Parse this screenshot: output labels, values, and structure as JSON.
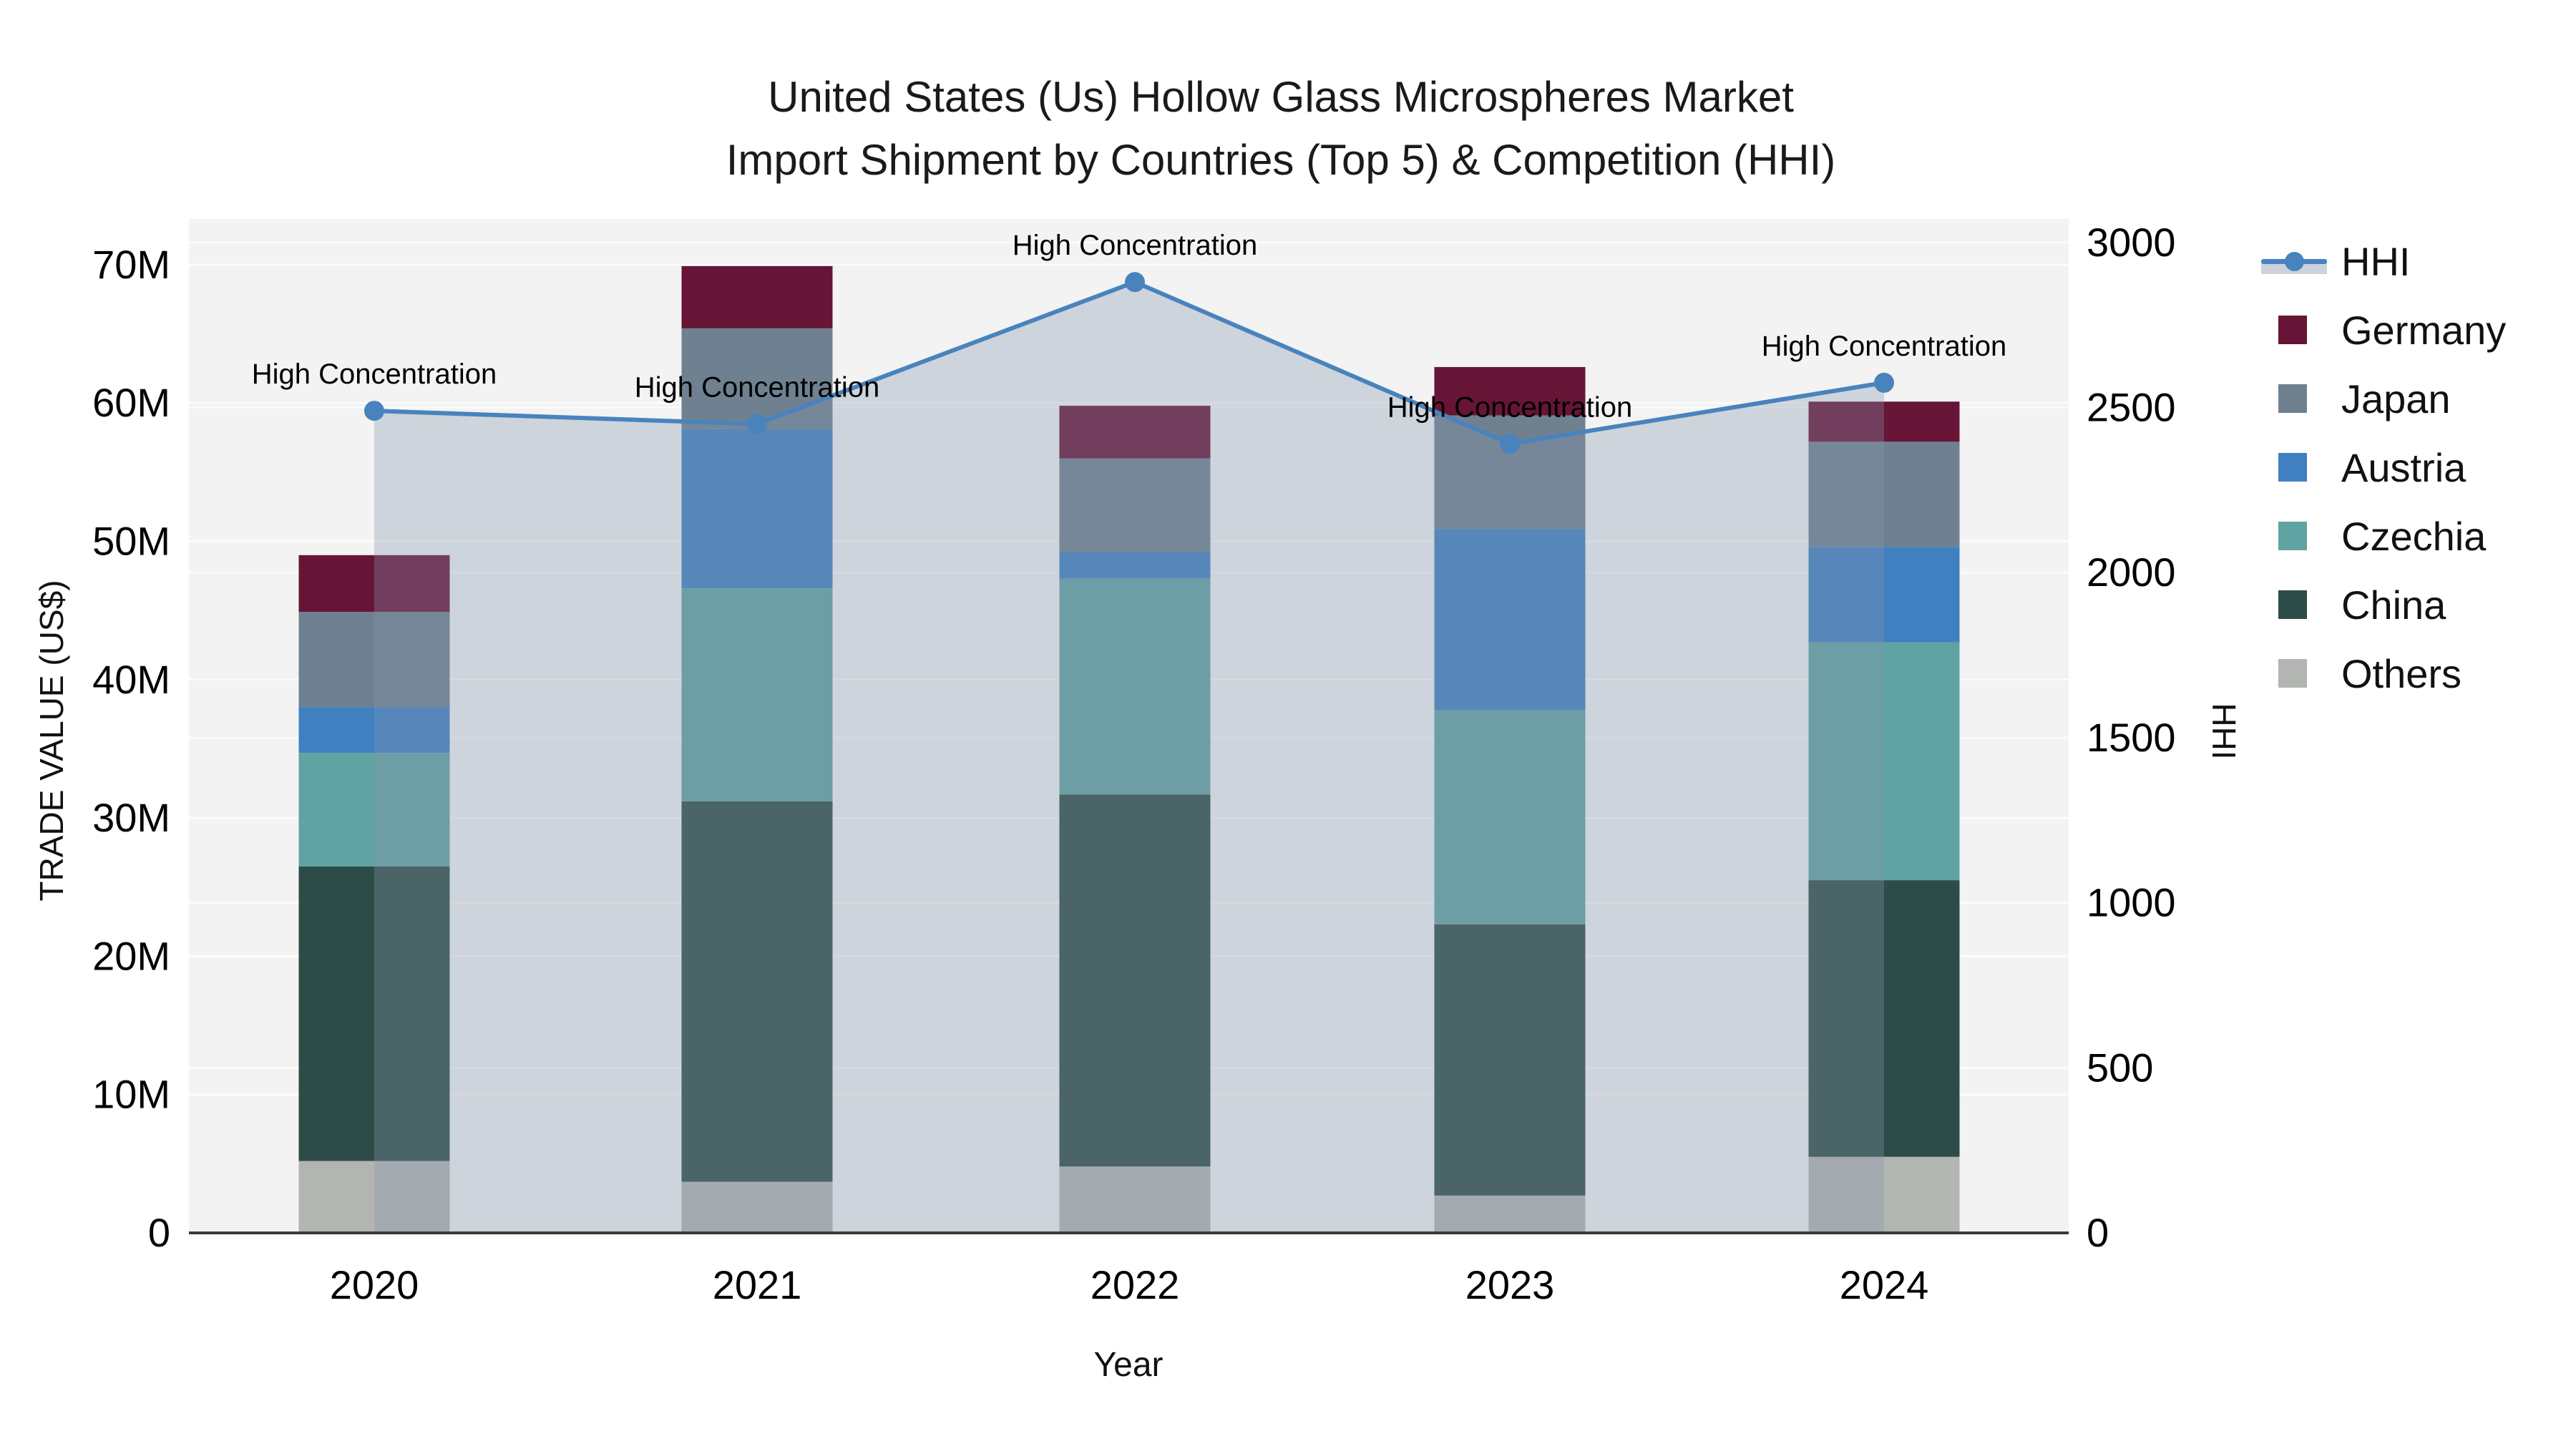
{
  "title": {
    "line1": "United States (Us) Hollow Glass Microspheres Market",
    "line2": "Import Shipment by Countries (Top 5) & Competition (HHI)"
  },
  "axes": {
    "left_title": "TRADE VALUE (US$)",
    "right_title": "HHI",
    "x_title": "Year",
    "left_ticks": [
      {
        "label": "0",
        "value": 0
      },
      {
        "label": "10M",
        "value": 10
      },
      {
        "label": "20M",
        "value": 20
      },
      {
        "label": "30M",
        "value": 30
      },
      {
        "label": "40M",
        "value": 40
      },
      {
        "label": "50M",
        "value": 50
      },
      {
        "label": "60M",
        "value": 60
      },
      {
        "label": "70M",
        "value": 70
      }
    ],
    "right_ticks": [
      {
        "label": "0",
        "value": 0
      },
      {
        "label": "500",
        "value": 500
      },
      {
        "label": "1000",
        "value": 1000
      },
      {
        "label": "1500",
        "value": 1500
      },
      {
        "label": "2000",
        "value": 2000
      },
      {
        "label": "2500",
        "value": 2500
      },
      {
        "label": "3000",
        "value": 3000
      }
    ]
  },
  "chart_data": {
    "type": "combo-stacked-bar-with-line-area",
    "categories": [
      "2020",
      "2021",
      "2022",
      "2023",
      "2024"
    ],
    "unit_left": "M US$",
    "unit_right": "HHI index",
    "ylim_left": [
      0,
      73.3
    ],
    "ylim_right": [
      0,
      3071
    ],
    "grid": "on",
    "legend_position": "right-top-outside",
    "series": [
      {
        "name": "Others",
        "color": "#b2b5b2",
        "values": [
          5.2,
          3.7,
          4.8,
          2.7,
          5.5
        ]
      },
      {
        "name": "China",
        "color": "#2e4c47",
        "values": [
          21.3,
          27.5,
          26.9,
          19.6,
          20.0
        ]
      },
      {
        "name": "Czechia",
        "color": "#61a3a2",
        "values": [
          8.2,
          15.4,
          15.6,
          15.5,
          17.2
        ]
      },
      {
        "name": "Austria",
        "color": "#4180c0",
        "values": [
          3.3,
          11.5,
          1.9,
          13.1,
          6.9
        ]
      },
      {
        "name": "Japan",
        "color": "#6f8191",
        "values": [
          6.9,
          7.3,
          6.8,
          8.2,
          7.6
        ]
      },
      {
        "name": "Germany",
        "color": "#671536",
        "values": [
          4.1,
          4.5,
          3.8,
          3.5,
          2.9
        ]
      }
    ],
    "bar_totals": [
      49.0,
      69.9,
      59.8,
      62.6,
      60.1
    ],
    "line": {
      "name": "HHI",
      "color": "#4983bd",
      "fill": "rgba(134,150,172,0.33)",
      "values": [
        2490,
        2450,
        2880,
        2390,
        2575
      ]
    },
    "annotations": [
      {
        "year": "2020",
        "text": "High Concentration"
      },
      {
        "year": "2021",
        "text": "High Concentration"
      },
      {
        "year": "2022",
        "text": "High Concentration"
      },
      {
        "year": "2023",
        "text": "High Concentration"
      },
      {
        "year": "2024",
        "text": "High Concentration"
      }
    ]
  },
  "legend": {
    "items": [
      {
        "label": "HHI",
        "type": "line",
        "color": "#4983bd"
      },
      {
        "label": "Germany",
        "type": "square",
        "color": "#671536"
      },
      {
        "label": "Japan",
        "type": "square",
        "color": "#6f8191"
      },
      {
        "label": "Austria",
        "type": "square",
        "color": "#4180c0"
      },
      {
        "label": "Czechia",
        "type": "square",
        "color": "#61a3a2"
      },
      {
        "label": "China",
        "type": "square",
        "color": "#2e4c47"
      },
      {
        "label": "Others",
        "type": "square",
        "color": "#b2b5b2"
      }
    ]
  },
  "colors": {
    "plot_background": "#f2f3f2",
    "page_background": "#ffffff",
    "gridline": "#ffffff",
    "axis_line": "#3a3a3a",
    "text": "#111111",
    "hhi_line": "#4983bd",
    "hhi_area_fill": "rgba(134,150,172,0.33)"
  }
}
